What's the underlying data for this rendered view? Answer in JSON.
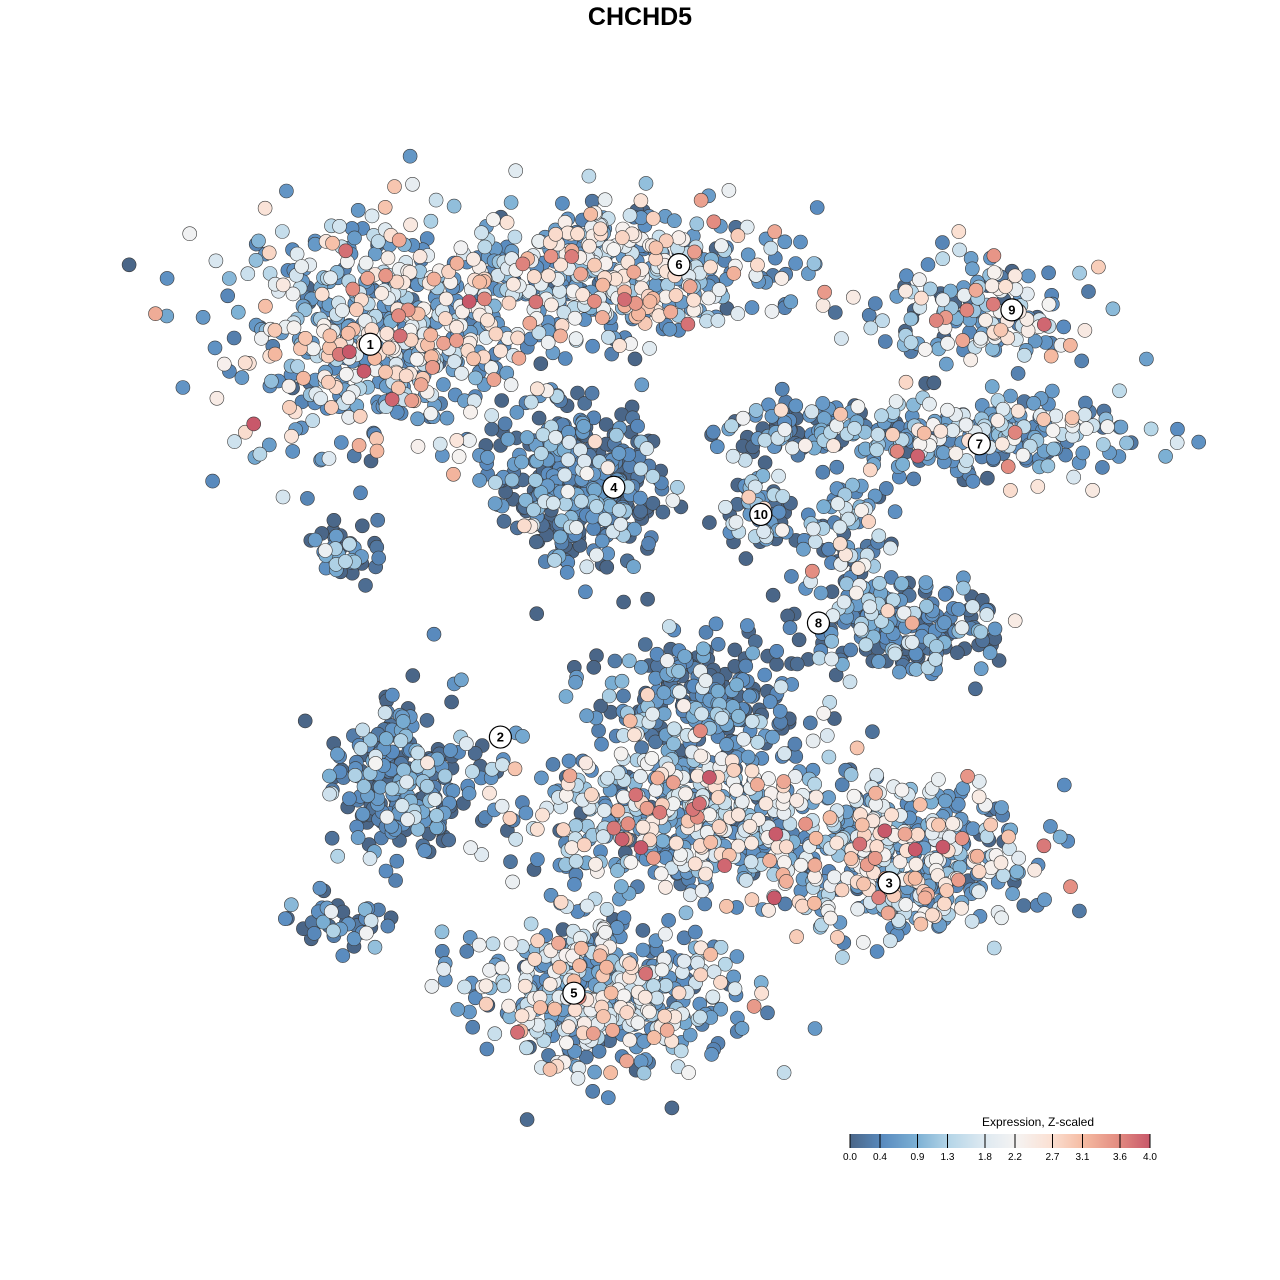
{
  "chart_data": {
    "type": "scatter",
    "title": "CHCHD5",
    "xlabel": "",
    "ylabel": "",
    "xlim": [
      -50,
      50
    ],
    "ylim": [
      -50,
      50
    ],
    "grid": false,
    "axes_visible": false,
    "color_by": "expression",
    "legend": {
      "title": "Expression, Z-scaled",
      "placement": "bottom-right",
      "range": [
        0.0,
        4.0
      ],
      "ticks": [
        "0.0",
        "0.4",
        "0.9",
        "1.3",
        "1.8",
        "2.2",
        "2.7",
        "3.1",
        "3.6",
        "4.0"
      ],
      "colors": [
        "#4a6688",
        "#5a8cc0",
        "#7cb0d4",
        "#b6d6e8",
        "#dde9f1",
        "#f5f3f2",
        "#fbe1d4",
        "#f5bba2",
        "#e48e82",
        "#c8586a"
      ]
    },
    "clusters": [
      {
        "label": "1",
        "x": -31.7,
        "y": 32.4
      },
      {
        "label": "2",
        "x": -17.7,
        "y": -11.0
      },
      {
        "label": "3",
        "x": 24.1,
        "y": -27.1
      },
      {
        "label": "4",
        "x": -5.5,
        "y": 16.6
      },
      {
        "label": "5",
        "x": -9.8,
        "y": -39.3
      },
      {
        "label": "6",
        "x": 1.5,
        "y": 41.2
      },
      {
        "label": "7",
        "x": 33.8,
        "y": 21.4
      },
      {
        "label": "8",
        "x": 16.5,
        "y": 1.6
      },
      {
        "label": "9",
        "x": 37.3,
        "y": 36.2
      },
      {
        "label": "10",
        "x": 10.3,
        "y": 13.6
      }
    ],
    "regions": [
      {
        "cluster": "1",
        "x": -29.6,
        "y": 33.3,
        "sx": 12,
        "sy": 9,
        "n": 600,
        "mean_expression": 1.9
      },
      {
        "cluster": "1",
        "x": -34.4,
        "y": 9.1,
        "sx": 3,
        "sy": 2,
        "n": 40,
        "mean_expression": 0.3
      },
      {
        "cluster": "6",
        "x": -4.8,
        "y": 40.6,
        "sx": 12,
        "sy": 5,
        "n": 450,
        "mean_expression": 1.8
      },
      {
        "cluster": "4",
        "x": -9.1,
        "y": 16.9,
        "sx": 6,
        "sy": 6,
        "n": 400,
        "mean_expression": 0.2
      },
      {
        "cluster": "10",
        "x": 10.2,
        "y": 14.1,
        "sx": 3,
        "sy": 3,
        "n": 60,
        "mean_expression": 0.8
      },
      {
        "cluster": "9",
        "x": 33.9,
        "y": 35.6,
        "sx": 8,
        "sy": 4,
        "n": 150,
        "mean_expression": 1.6
      },
      {
        "cluster": "7",
        "x": 31.7,
        "y": 21.8,
        "sx": 13,
        "sy": 3.5,
        "n": 250,
        "mean_expression": 1.4
      },
      {
        "cluster": "7",
        "x": 14.5,
        "y": 22.9,
        "sx": 6,
        "sy": 2,
        "n": 80,
        "mean_expression": 0.5
      },
      {
        "cluster": "8",
        "x": 25.3,
        "y": 0.8,
        "sx": 8,
        "sy": 4,
        "n": 200,
        "mean_expression": 0.6
      },
      {
        "cluster": "8",
        "x": 19.9,
        "y": 10.8,
        "sx": 3,
        "sy": 5,
        "n": 80,
        "mean_expression": 1.2
      },
      {
        "cluster": "2",
        "x": -28.5,
        "y": -15.7,
        "sx": 6,
        "sy": 6,
        "n": 250,
        "mean_expression": 0.3
      },
      {
        "cluster": "2",
        "x": -35,
        "y": -31.2,
        "sx": 4,
        "sy": 2,
        "n": 40,
        "mean_expression": 0.5
      },
      {
        "cluster": "3",
        "x": 3.8,
        "y": -6.9,
        "sx": 8,
        "sy": 5,
        "n": 250,
        "mean_expression": 0.4
      },
      {
        "cluster": "3",
        "x": 1.6,
        "y": -20.2,
        "sx": 12,
        "sy": 6,
        "n": 500,
        "mean_expression": 1.7
      },
      {
        "cluster": "3",
        "x": 25.3,
        "y": -24.6,
        "sx": 10,
        "sy": 6,
        "n": 450,
        "mean_expression": 1.9
      },
      {
        "cluster": "5",
        "x": -7,
        "y": -39,
        "sx": 10,
        "sy": 6,
        "n": 500,
        "mean_expression": 1.6
      }
    ]
  }
}
